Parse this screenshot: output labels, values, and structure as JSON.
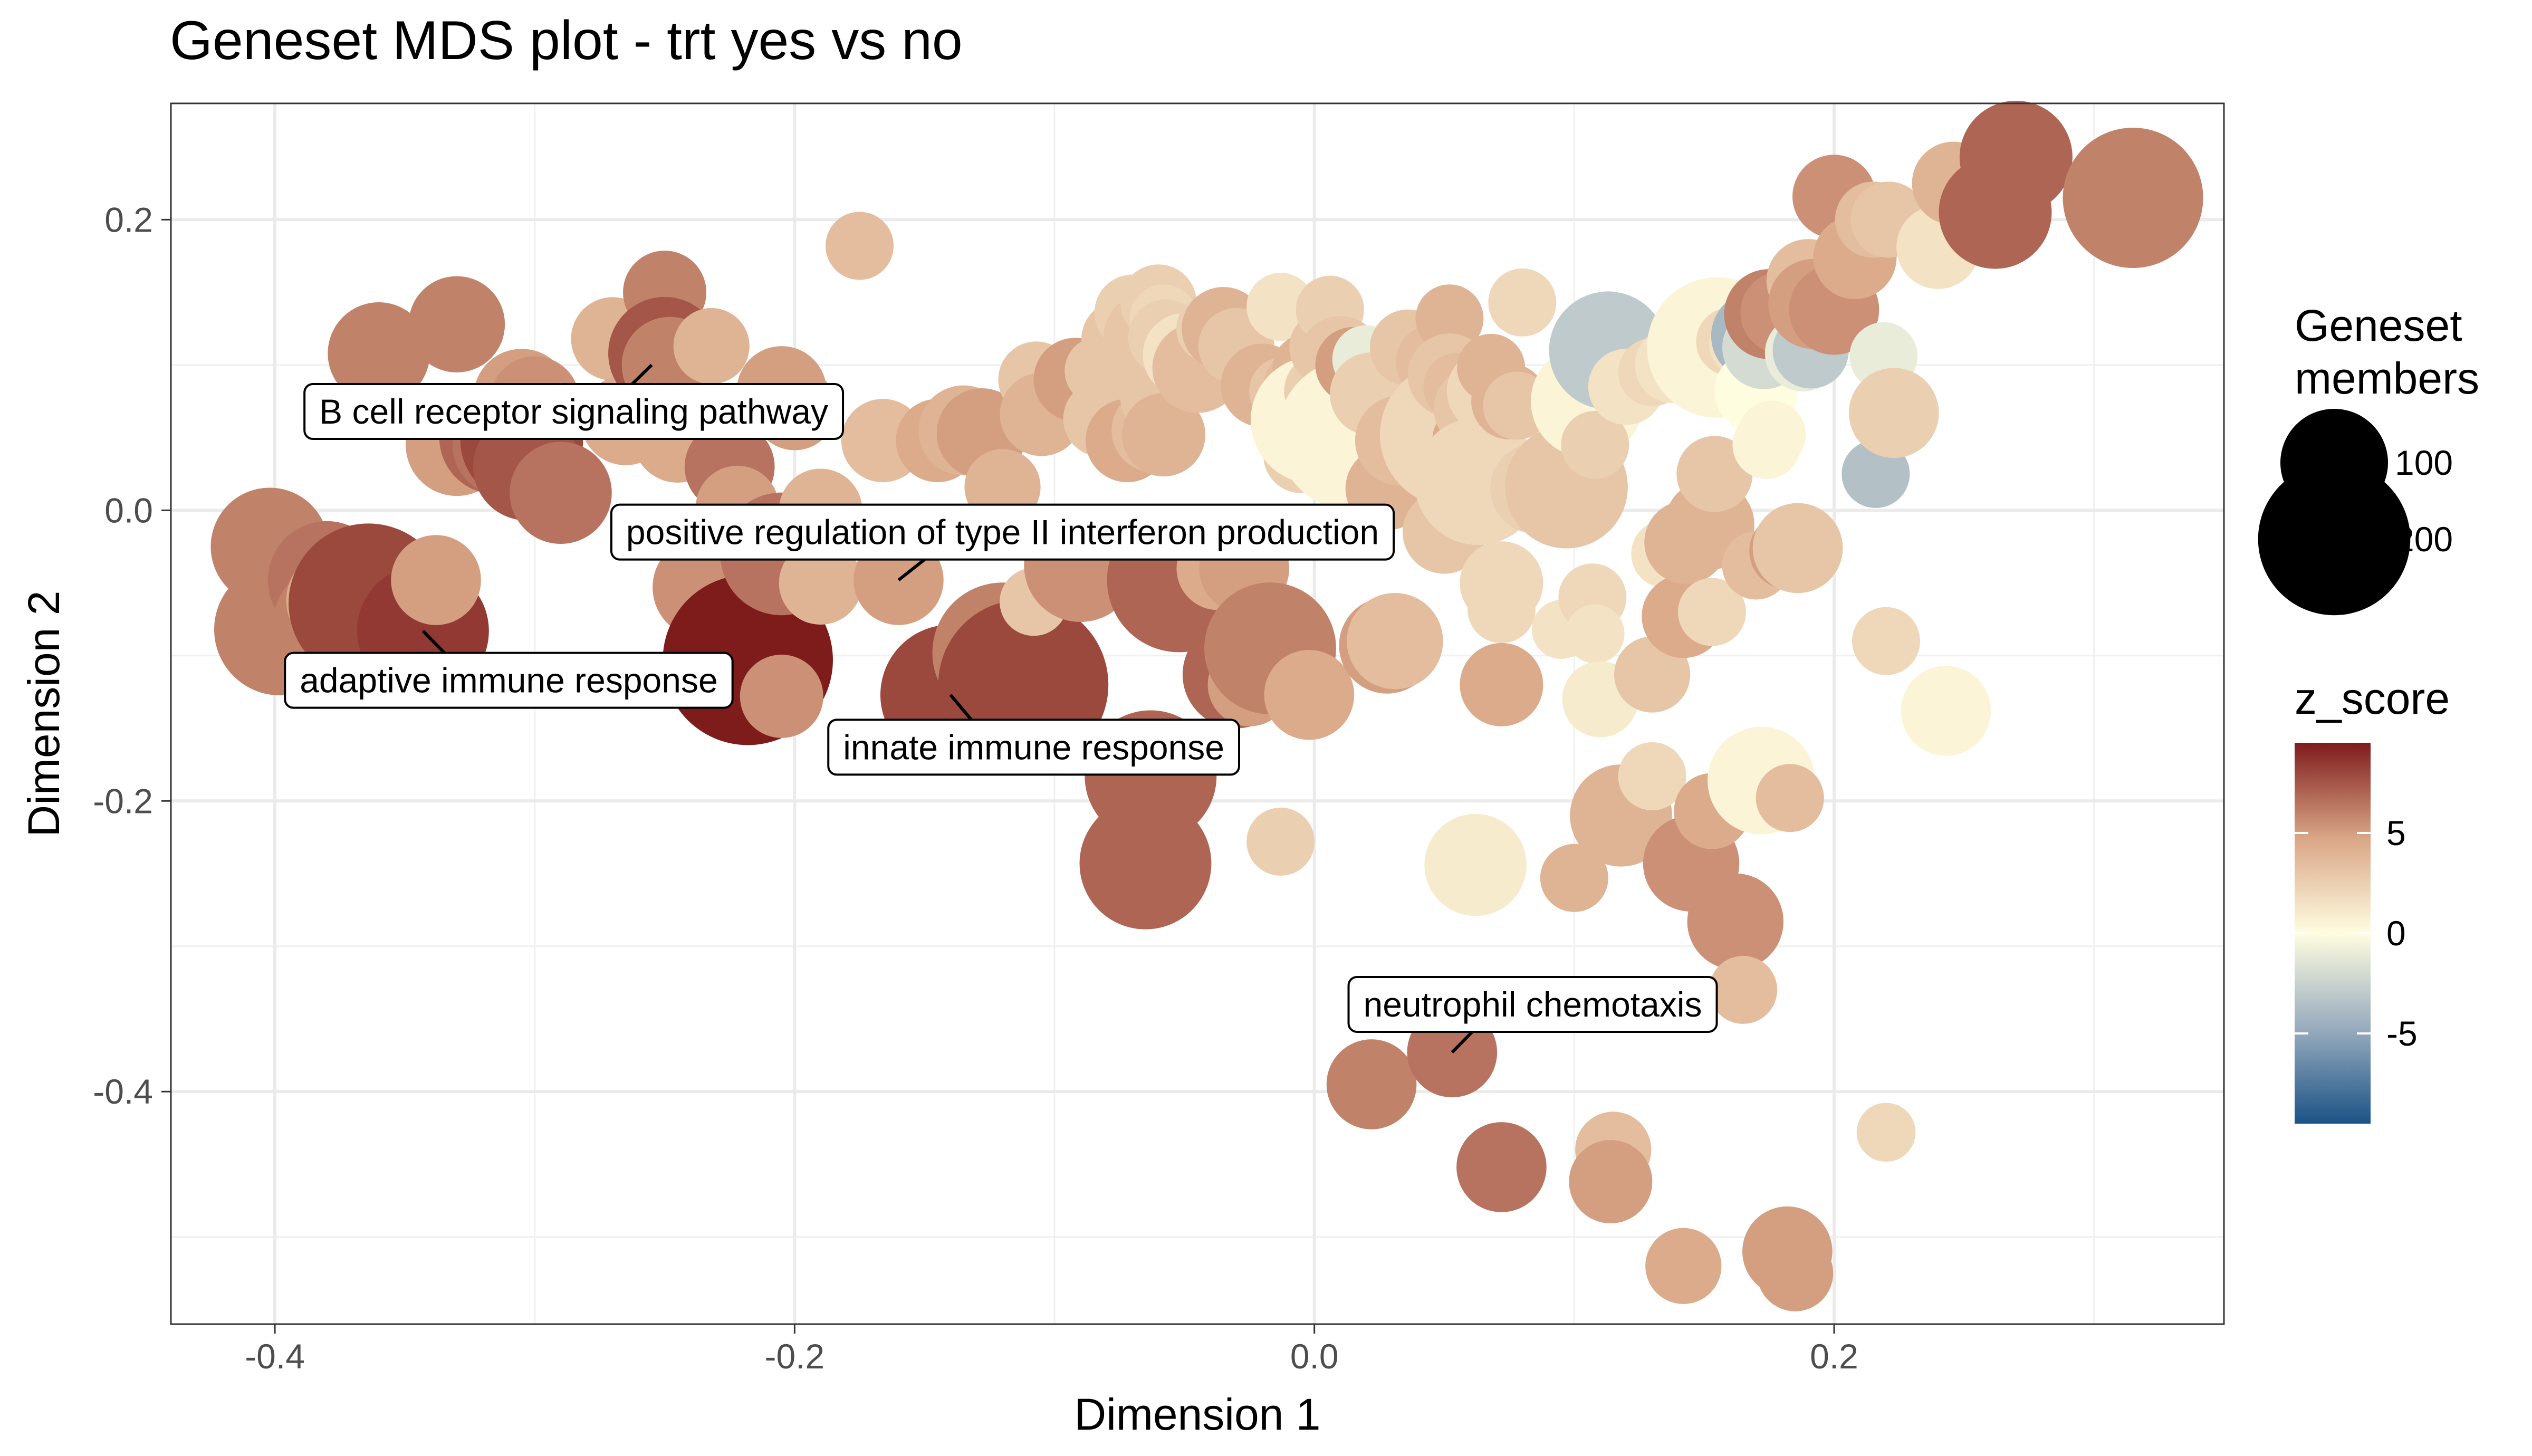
{
  "chart_data": {
    "type": "scatter",
    "title": "Geneset MDS plot - trt yes vs no",
    "xlabel": "Dimension 1",
    "ylabel": "Dimension 2",
    "xlim": [
      -0.44,
      0.35
    ],
    "ylim": [
      -0.56,
      0.28
    ],
    "x_ticks": [
      -0.4,
      -0.2,
      0.0,
      0.2
    ],
    "x_tick_labels": [
      "-0.4",
      "-0.2",
      "0.0",
      "0.2"
    ],
    "y_ticks": [
      -0.4,
      -0.2,
      0.0,
      0.2
    ],
    "y_tick_labels": [
      "-0.4",
      "-0.2",
      "0.0",
      "0.2"
    ],
    "grid": true,
    "legend_position": "right",
    "size_legend": {
      "title": [
        "Geneset",
        "members"
      ],
      "entries": [
        {
          "label": "100",
          "value": 100
        },
        {
          "label": "200",
          "value": 200
        }
      ]
    },
    "color_legend": {
      "title": "z_score",
      "range": [
        -9.5,
        9.5
      ],
      "ticks": [
        5,
        0,
        -5
      ],
      "tick_labels": [
        "5",
        "0",
        "-5"
      ],
      "colors": {
        "low": "#1b5386",
        "mid_low": "#98acbe",
        "mid": "#fffde0",
        "mid_high": "#d9a686",
        "high": "#7e1c1c"
      }
    },
    "annotations": [
      {
        "label": "B cell receptor signaling pathway",
        "x": -0.255,
        "y": 0.1,
        "lx": -0.285,
        "ly": 0.068
      },
      {
        "label": "positive regulation of type II interferon production",
        "x": -0.16,
        "y": -0.048,
        "lx": -0.12,
        "ly": -0.015
      },
      {
        "label": "adaptive immune response",
        "x": -0.343,
        "y": -0.083,
        "lx": -0.31,
        "ly": -0.117
      },
      {
        "label": "innate immune response",
        "x": -0.14,
        "y": -0.127,
        "lx": -0.108,
        "ly": -0.163
      },
      {
        "label": "neutrophil chemotaxis",
        "x": 0.053,
        "y": -0.373,
        "lx": 0.084,
        "ly": -0.34
      }
    ],
    "points": [
      {
        "x": -0.402,
        "y": -0.025,
        "size": 120,
        "z": 6.0
      },
      {
        "x": -0.398,
        "y": -0.082,
        "size": 150,
        "z": 6.0
      },
      {
        "x": -0.38,
        "y": -0.048,
        "size": 120,
        "z": 6.5
      },
      {
        "x": -0.378,
        "y": -0.078,
        "size": 120,
        "z": 6.0
      },
      {
        "x": -0.376,
        "y": -0.062,
        "size": 90,
        "z": 4.5
      },
      {
        "x": -0.364,
        "y": -0.064,
        "size": 220,
        "z": 8.0
      },
      {
        "x": -0.343,
        "y": -0.083,
        "size": 150,
        "z": 8.5
      },
      {
        "x": -0.338,
        "y": -0.048,
        "size": 70,
        "z": 5.0
      },
      {
        "x": -0.36,
        "y": 0.108,
        "size": 90,
        "z": 6.0
      },
      {
        "x": -0.33,
        "y": 0.128,
        "size": 80,
        "z": 6.0
      },
      {
        "x": -0.33,
        "y": 0.045,
        "size": 90,
        "z": 5.0
      },
      {
        "x": -0.315,
        "y": 0.05,
        "size": 110,
        "z": 7.0
      },
      {
        "x": -0.312,
        "y": 0.045,
        "size": 90,
        "z": 6.5
      },
      {
        "x": -0.305,
        "y": 0.048,
        "size": 130,
        "z": 8.0
      },
      {
        "x": -0.305,
        "y": 0.078,
        "size": 80,
        "z": 5.0
      },
      {
        "x": -0.3,
        "y": 0.075,
        "size": 70,
        "z": 5.5
      },
      {
        "x": -0.303,
        "y": 0.03,
        "size": 100,
        "z": 7.5
      },
      {
        "x": -0.29,
        "y": 0.012,
        "size": 90,
        "z": 6.5
      },
      {
        "x": -0.27,
        "y": 0.118,
        "size": 60,
        "z": 4.0
      },
      {
        "x": -0.265,
        "y": 0.062,
        "size": 70,
        "z": 4.5
      },
      {
        "x": -0.25,
        "y": 0.15,
        "size": 60,
        "z": 6.0
      },
      {
        "x": -0.25,
        "y": 0.108,
        "size": 110,
        "z": 7.5
      },
      {
        "x": -0.248,
        "y": 0.1,
        "size": 80,
        "z": 6.0
      },
      {
        "x": -0.245,
        "y": 0.05,
        "size": 70,
        "z": 4.5
      },
      {
        "x": -0.235,
        "y": -0.053,
        "size": 90,
        "z": 5.5
      },
      {
        "x": -0.232,
        "y": 0.113,
        "size": 50,
        "z": 4.0
      },
      {
        "x": -0.225,
        "y": 0.03,
        "size": 70,
        "z": 6.5
      },
      {
        "x": -0.222,
        "y": 0.002,
        "size": 60,
        "z": 5.0
      },
      {
        "x": -0.218,
        "y": -0.103,
        "size": 250,
        "z": 9.5
      },
      {
        "x": -0.205,
        "y": -0.128,
        "size": 60,
        "z": 5.5
      },
      {
        "x": -0.205,
        "y": 0.082,
        "size": 70,
        "z": 5.0
      },
      {
        "x": -0.2,
        "y": 0.07,
        "size": 60,
        "z": 5.0
      },
      {
        "x": -0.205,
        "y": -0.03,
        "size": 130,
        "z": 6.5
      },
      {
        "x": -0.19,
        "y": -0.05,
        "size": 60,
        "z": 4.0
      },
      {
        "x": -0.19,
        "y": 0.0,
        "size": 60,
        "z": 4.0
      },
      {
        "x": -0.175,
        "y": 0.182,
        "size": 40,
        "z": 3.5
      },
      {
        "x": -0.166,
        "y": 0.048,
        "size": 60,
        "z": 3.5
      },
      {
        "x": -0.16,
        "y": -0.048,
        "size": 70,
        "z": 5.0
      },
      {
        "x": -0.145,
        "y": 0.048,
        "size": 60,
        "z": 4.5
      },
      {
        "x": -0.14,
        "y": -0.127,
        "size": 170,
        "z": 8.0
      },
      {
        "x": -0.135,
        "y": 0.055,
        "size": 70,
        "z": 4.0
      },
      {
        "x": -0.128,
        "y": 0.053,
        "size": 70,
        "z": 5.0
      },
      {
        "x": -0.12,
        "y": 0.016,
        "size": 50,
        "z": 4.0
      },
      {
        "x": -0.12,
        "y": -0.098,
        "size": 170,
        "z": 6.0
      },
      {
        "x": -0.112,
        "y": -0.12,
        "size": 250,
        "z": 8.0
      },
      {
        "x": -0.108,
        "y": -0.063,
        "size": 40,
        "z": 3.0
      },
      {
        "x": -0.107,
        "y": 0.09,
        "size": 50,
        "z": 3.0
      },
      {
        "x": -0.105,
        "y": 0.066,
        "size": 60,
        "z": 4.0
      },
      {
        "x": -0.092,
        "y": 0.09,
        "size": 60,
        "z": 5.0
      },
      {
        "x": -0.09,
        "y": -0.038,
        "size": 110,
        "z": 5.5
      },
      {
        "x": -0.083,
        "y": 0.096,
        "size": 40,
        "z": 3.0
      },
      {
        "x": -0.082,
        "y": 0.063,
        "size": 50,
        "z": 3.0
      },
      {
        "x": -0.075,
        "y": 0.118,
        "size": 50,
        "z": 3.0
      },
      {
        "x": -0.072,
        "y": 0.048,
        "size": 60,
        "z": 4.5
      },
      {
        "x": -0.07,
        "y": 0.136,
        "size": 50,
        "z": 2.5
      },
      {
        "x": -0.065,
        "y": 0.12,
        "size": 60,
        "z": 3.0
      },
      {
        "x": -0.063,
        "y": -0.183,
        "size": 150,
        "z": 7.0
      },
      {
        "x": -0.065,
        "y": -0.243,
        "size": 150,
        "z": 7.0
      },
      {
        "x": -0.062,
        "y": 0.055,
        "size": 60,
        "z": 3.5
      },
      {
        "x": -0.06,
        "y": 0.143,
        "size": 50,
        "z": 2.5
      },
      {
        "x": -0.06,
        "y": 0.077,
        "size": 50,
        "z": 3.0
      },
      {
        "x": -0.058,
        "y": 0.132,
        "size": 40,
        "z": 2.0
      },
      {
        "x": -0.058,
        "y": 0.052,
        "size": 60,
        "z": 4.0
      },
      {
        "x": -0.057,
        "y": 0.119,
        "size": 50,
        "z": 2.5
      },
      {
        "x": -0.052,
        "y": -0.048,
        "size": 180,
        "z": 7.0
      },
      {
        "x": -0.05,
        "y": 0.107,
        "size": 60,
        "z": 1.5
      },
      {
        "x": -0.045,
        "y": 0.098,
        "size": 70,
        "z": 3.5
      },
      {
        "x": -0.04,
        "y": 0.125,
        "size": 40,
        "z": 2.5
      },
      {
        "x": -0.037,
        "y": -0.04,
        "size": 60,
        "z": 4.5
      },
      {
        "x": -0.035,
        "y": 0.125,
        "size": 60,
        "z": 4.0
      },
      {
        "x": -0.03,
        "y": 0.113,
        "size": 50,
        "z": 3.0
      },
      {
        "x": -0.03,
        "y": -0.113,
        "size": 100,
        "z": 7.0
      },
      {
        "x": -0.027,
        "y": -0.04,
        "size": 70,
        "z": 5.0
      },
      {
        "x": -0.025,
        "y": -0.12,
        "size": 60,
        "z": 5.0
      },
      {
        "x": -0.02,
        "y": 0.086,
        "size": 60,
        "z": 4.0
      },
      {
        "x": -0.017,
        "y": -0.095,
        "size": 150,
        "z": 6.0
      },
      {
        "x": -0.013,
        "y": -0.228,
        "size": 40,
        "z": 2.5
      },
      {
        "x": -0.013,
        "y": 0.14,
        "size": 40,
        "z": 1.5
      },
      {
        "x": -0.012,
        "y": 0.082,
        "size": 40,
        "z": 3.0
      },
      {
        "x": -0.005,
        "y": 0.085,
        "size": 50,
        "z": 3.5
      },
      {
        "x": -0.005,
        "y": 0.038,
        "size": 50,
        "z": 2.5
      },
      {
        "x": -0.003,
        "y": 0.098,
        "size": 40,
        "z": 4.0
      },
      {
        "x": -0.002,
        "y": -0.127,
        "size": 70,
        "z": 4.5
      },
      {
        "x": 0.0,
        "y": 0.062,
        "size": 140,
        "z": 0.5
      },
      {
        "x": 0.003,
        "y": 0.082,
        "size": 50,
        "z": 2.5
      },
      {
        "x": 0.005,
        "y": 0.112,
        "size": 50,
        "z": 3.0
      },
      {
        "x": 0.006,
        "y": 0.138,
        "size": 40,
        "z": 2.5
      },
      {
        "x": 0.01,
        "y": 0.105,
        "size": 60,
        "z": 3.0
      },
      {
        "x": 0.015,
        "y": 0.052,
        "size": 200,
        "z": 0.5
      },
      {
        "x": 0.015,
        "y": 0.1,
        "size": 50,
        "z": 5.0
      },
      {
        "x": 0.02,
        "y": 0.104,
        "size": 40,
        "z": -1.0
      },
      {
        "x": 0.022,
        "y": 0.08,
        "size": 60,
        "z": 2.5
      },
      {
        "x": 0.022,
        "y": -0.395,
        "size": 70,
        "z": 6.0
      },
      {
        "x": 0.028,
        "y": 0.015,
        "size": 60,
        "z": 4.0
      },
      {
        "x": 0.028,
        "y": -0.093,
        "size": 80,
        "z": 5.0
      },
      {
        "x": 0.031,
        "y": -0.09,
        "size": 80,
        "z": 3.5
      },
      {
        "x": 0.033,
        "y": 0.048,
        "size": 70,
        "z": 3.5
      },
      {
        "x": 0.036,
        "y": 0.112,
        "size": 50,
        "z": 3.0
      },
      {
        "x": 0.046,
        "y": 0.102,
        "size": 50,
        "z": 3.5
      },
      {
        "x": 0.052,
        "y": 0.132,
        "size": 40,
        "z": 4.0
      },
      {
        "x": 0.05,
        "y": 0.055,
        "size": 80,
        "z": 5.0
      },
      {
        "x": 0.053,
        "y": 0.052,
        "size": 180,
        "z": 2.0
      },
      {
        "x": 0.05,
        "y": -0.015,
        "size": 60,
        "z": 3.0
      },
      {
        "x": 0.053,
        "y": -0.373,
        "size": 70,
        "z": 6.5
      },
      {
        "x": 0.052,
        "y": 0.093,
        "size": 60,
        "z": 3.0
      },
      {
        "x": 0.055,
        "y": 0.085,
        "size": 40,
        "z": 3.5
      },
      {
        "x": 0.06,
        "y": 0.048,
        "size": 50,
        "z": 4.5
      },
      {
        "x": 0.062,
        "y": 0.07,
        "size": 60,
        "z": 3.0
      },
      {
        "x": 0.063,
        "y": 0.02,
        "size": 140,
        "z": 2.0
      },
      {
        "x": 0.062,
        "y": -0.244,
        "size": 90,
        "z": 1.0
      },
      {
        "x": 0.067,
        "y": 0.082,
        "size": 60,
        "z": 2.0
      },
      {
        "x": 0.068,
        "y": 0.098,
        "size": 40,
        "z": 4.0
      },
      {
        "x": 0.072,
        "y": -0.05,
        "size": 60,
        "z": 2.0
      },
      {
        "x": 0.072,
        "y": -0.068,
        "size": 40,
        "z": 2.0
      },
      {
        "x": 0.072,
        "y": -0.12,
        "size": 60,
        "z": 4.5
      },
      {
        "x": 0.072,
        "y": -0.452,
        "size": 70,
        "z": 6.5
      },
      {
        "x": 0.075,
        "y": 0.075,
        "size": 50,
        "z": 4.0
      },
      {
        "x": 0.078,
        "y": 0.072,
        "size": 40,
        "z": 3.0
      },
      {
        "x": 0.08,
        "y": 0.143,
        "size": 40,
        "z": 2.0
      },
      {
        "x": 0.085,
        "y": 0.015,
        "size": 70,
        "z": 2.5
      },
      {
        "x": 0.095,
        "y": -0.082,
        "size": 30,
        "z": 1.5
      },
      {
        "x": 0.097,
        "y": 0.016,
        "size": 130,
        "z": 3.0
      },
      {
        "x": 0.1,
        "y": -0.253,
        "size": 40,
        "z": 4.0
      },
      {
        "x": 0.105,
        "y": 0.075,
        "size": 110,
        "z": 0.5
      },
      {
        "x": 0.107,
        "y": -0.06,
        "size": 40,
        "z": 2.0
      },
      {
        "x": 0.108,
        "y": 0.045,
        "size": 40,
        "z": 2.5
      },
      {
        "x": 0.108,
        "y": -0.085,
        "size": 30,
        "z": 1.5
      },
      {
        "x": 0.11,
        "y": -0.13,
        "size": 50,
        "z": 1.0
      },
      {
        "x": 0.113,
        "y": 0.122,
        "size": 60,
        "z": 3.0
      },
      {
        "x": 0.113,
        "y": 0.11,
        "size": 120,
        "z": -3.0
      },
      {
        "x": 0.115,
        "y": -0.44,
        "size": 50,
        "z": 3.5
      },
      {
        "x": 0.114,
        "y": -0.462,
        "size": 60,
        "z": 5.0
      },
      {
        "x": 0.118,
        "y": -0.21,
        "size": 90,
        "z": 4.0
      },
      {
        "x": 0.12,
        "y": 0.085,
        "size": 50,
        "z": 1.5
      },
      {
        "x": 0.13,
        "y": -0.113,
        "size": 50,
        "z": 3.0
      },
      {
        "x": 0.13,
        "y": 0.095,
        "size": 40,
        "z": 2.0
      },
      {
        "x": 0.13,
        "y": -0.183,
        "size": 40,
        "z": 2.0
      },
      {
        "x": 0.135,
        "y": -0.03,
        "size": 40,
        "z": 1.5
      },
      {
        "x": 0.138,
        "y": 0.1,
        "size": 50,
        "z": 1.5
      },
      {
        "x": 0.142,
        "y": -0.073,
        "size": 60,
        "z": 4.5
      },
      {
        "x": 0.142,
        "y": -0.52,
        "size": 50,
        "z": 4.5
      },
      {
        "x": 0.143,
        "y": -0.022,
        "size": 60,
        "z": 4.0
      },
      {
        "x": 0.145,
        "y": -0.243,
        "size": 80,
        "z": 5.5
      },
      {
        "x": 0.15,
        "y": 0.115,
        "size": 60,
        "z": 4.5
      },
      {
        "x": 0.152,
        "y": -0.01,
        "size": 70,
        "z": 4.0
      },
      {
        "x": 0.153,
        "y": -0.07,
        "size": 40,
        "z": 2.0
      },
      {
        "x": 0.153,
        "y": -0.207,
        "size": 50,
        "z": 4.5
      },
      {
        "x": 0.154,
        "y": 0.025,
        "size": 50,
        "z": 3.0
      },
      {
        "x": 0.155,
        "y": 0.112,
        "size": 170,
        "z": 0.5
      },
      {
        "x": 0.16,
        "y": 0.116,
        "size": 40,
        "z": 2.0
      },
      {
        "x": 0.162,
        "y": -0.283,
        "size": 80,
        "z": 5.5
      },
      {
        "x": 0.165,
        "y": 0.115,
        "size": 40,
        "z": 1.5
      },
      {
        "x": 0.165,
        "y": -0.33,
        "size": 40,
        "z": 3.5
      },
      {
        "x": 0.17,
        "y": 0.12,
        "size": 70,
        "z": -4.0
      },
      {
        "x": 0.17,
        "y": 0.082,
        "size": 60,
        "z": 0.0
      },
      {
        "x": 0.17,
        "y": -0.038,
        "size": 40,
        "z": 3.5
      },
      {
        "x": 0.172,
        "y": -0.186,
        "size": 100,
        "z": 0.5
      },
      {
        "x": 0.173,
        "y": 0.112,
        "size": 60,
        "z": -2.0
      },
      {
        "x": 0.174,
        "y": 0.045,
        "size": 40,
        "z": 0.5
      },
      {
        "x": 0.175,
        "y": 0.135,
        "size": 70,
        "z": 6.0
      },
      {
        "x": 0.176,
        "y": 0.052,
        "size": 40,
        "z": 0.5
      },
      {
        "x": 0.18,
        "y": 0.136,
        "size": 60,
        "z": 5.5
      },
      {
        "x": 0.182,
        "y": -0.028,
        "size": 50,
        "z": 5.0
      },
      {
        "x": 0.182,
        "y": -0.51,
        "size": 70,
        "z": 5.0
      },
      {
        "x": 0.183,
        "y": -0.198,
        "size": 40,
        "z": 3.5
      },
      {
        "x": 0.185,
        "y": -0.525,
        "size": 50,
        "z": 5.0
      },
      {
        "x": 0.186,
        "y": -0.026,
        "size": 70,
        "z": 3.0
      },
      {
        "x": 0.188,
        "y": 0.108,
        "size": 50,
        "z": -1.0
      },
      {
        "x": 0.19,
        "y": 0.158,
        "size": 60,
        "z": 3.5
      },
      {
        "x": 0.191,
        "y": 0.11,
        "size": 50,
        "z": -3.0
      },
      {
        "x": 0.192,
        "y": 0.142,
        "size": 70,
        "z": 5.0
      },
      {
        "x": 0.2,
        "y": 0.138,
        "size": 70,
        "z": 5.5
      },
      {
        "x": 0.2,
        "y": 0.216,
        "size": 60,
        "z": 5.5
      },
      {
        "x": 0.208,
        "y": 0.174,
        "size": 60,
        "z": 4.5
      },
      {
        "x": 0.215,
        "y": 0.2,
        "size": 50,
        "z": 3.5
      },
      {
        "x": 0.216,
        "y": 0.025,
        "size": 40,
        "z": -3.5
      },
      {
        "x": 0.219,
        "y": 0.106,
        "size": 40,
        "z": -1.0
      },
      {
        "x": 0.22,
        "y": -0.09,
        "size": 40,
        "z": 2.0
      },
      {
        "x": 0.22,
        "y": -0.428,
        "size": 30,
        "z": 2.0
      },
      {
        "x": 0.221,
        "y": 0.2,
        "size": 50,
        "z": 3.0
      },
      {
        "x": 0.223,
        "y": 0.067,
        "size": 70,
        "z": 2.5
      },
      {
        "x": 0.24,
        "y": 0.181,
        "size": 60,
        "z": 1.5
      },
      {
        "x": 0.243,
        "y": -0.138,
        "size": 70,
        "z": 0.5
      },
      {
        "x": 0.246,
        "y": 0.225,
        "size": 60,
        "z": 4.0
      },
      {
        "x": 0.262,
        "y": 0.205,
        "size": 110,
        "z": 7.0
      },
      {
        "x": 0.27,
        "y": 0.243,
        "size": 110,
        "z": 7.0
      },
      {
        "x": 0.315,
        "y": 0.215,
        "size": 170,
        "z": 6.0
      }
    ]
  }
}
